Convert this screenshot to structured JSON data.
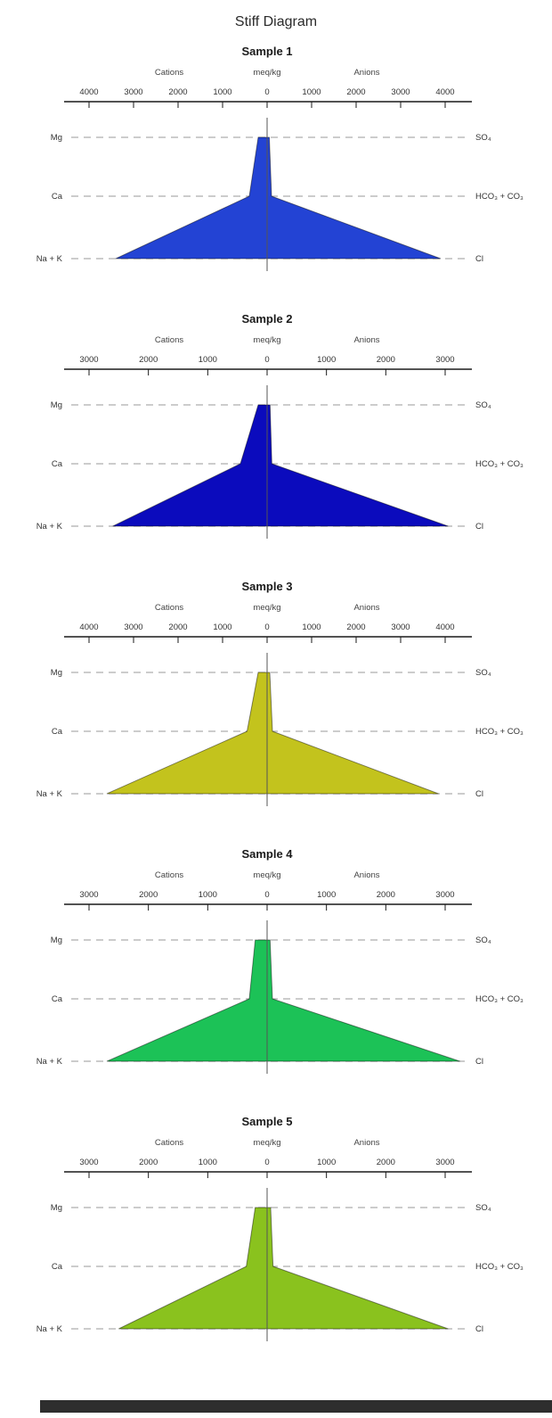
{
  "page_title": "Stiff Diagram",
  "chart_data": [
    {
      "type": "area",
      "subtype": "stiff",
      "title": "Sample 1",
      "group_labels": {
        "cations": "Cations",
        "units": "meq/kg",
        "anions": "Anions"
      },
      "axis": {
        "max": 4000,
        "tick_step": 1000,
        "tick_labels_absolute": true
      },
      "color": "#2343d4",
      "rows": [
        {
          "cation_label": "Mg",
          "anion_label": "SO₄",
          "cation_value": 200,
          "anion_value": 50
        },
        {
          "cation_label": "Ca",
          "anion_label": "HCO₃ + CO₃",
          "cation_value": 400,
          "anion_value": 100
        },
        {
          "cation_label": "Na + K",
          "anion_label": "Cl",
          "cation_value": 3400,
          "anion_value": 3900
        }
      ]
    },
    {
      "type": "area",
      "subtype": "stiff",
      "title": "Sample 2",
      "group_labels": {
        "cations": "Cations",
        "units": "meq/kg",
        "anions": "Anions"
      },
      "axis": {
        "max": 3000,
        "tick_step": 1000,
        "tick_labels_absolute": true
      },
      "color": "#0b0bbd",
      "rows": [
        {
          "cation_label": "Mg",
          "anion_label": "SO₄",
          "cation_value": 150,
          "anion_value": 50
        },
        {
          "cation_label": "Ca",
          "anion_label": "HCO₃ + CO₃",
          "cation_value": 450,
          "anion_value": 80
        },
        {
          "cation_label": "Na + K",
          "anion_label": "Cl",
          "cation_value": 2600,
          "anion_value": 3050
        }
      ]
    },
    {
      "type": "area",
      "subtype": "stiff",
      "title": "Sample 3",
      "group_labels": {
        "cations": "Cations",
        "units": "meq/kg",
        "anions": "Anions"
      },
      "axis": {
        "max": 4000,
        "tick_step": 1000,
        "tick_labels_absolute": true
      },
      "color": "#c3c31d",
      "rows": [
        {
          "cation_label": "Mg",
          "anion_label": "SO₄",
          "cation_value": 200,
          "anion_value": 60
        },
        {
          "cation_label": "Ca",
          "anion_label": "HCO₃ + CO₃",
          "cation_value": 450,
          "anion_value": 120
        },
        {
          "cation_label": "Na + K",
          "anion_label": "Cl",
          "cation_value": 3600,
          "anion_value": 3850
        }
      ]
    },
    {
      "type": "area",
      "subtype": "stiff",
      "title": "Sample 4",
      "group_labels": {
        "cations": "Cations",
        "units": "meq/kg",
        "anions": "Anions"
      },
      "axis": {
        "max": 3000,
        "tick_step": 1000,
        "tick_labels_absolute": true
      },
      "color": "#1cc257",
      "rows": [
        {
          "cation_label": "Mg",
          "anion_label": "SO₄",
          "cation_value": 200,
          "anion_value": 50
        },
        {
          "cation_label": "Ca",
          "anion_label": "HCO₃ + CO₃",
          "cation_value": 300,
          "anion_value": 90
        },
        {
          "cation_label": "Na + K",
          "anion_label": "Cl",
          "cation_value": 2700,
          "anion_value": 3250
        }
      ]
    },
    {
      "type": "area",
      "subtype": "stiff",
      "title": "Sample 5",
      "group_labels": {
        "cations": "Cations",
        "units": "meq/kg",
        "anions": "Anions"
      },
      "axis": {
        "max": 3000,
        "tick_step": 1000,
        "tick_labels_absolute": true
      },
      "color": "#8ac21e",
      "rows": [
        {
          "cation_label": "Mg",
          "anion_label": "SO₄",
          "cation_value": 200,
          "anion_value": 60
        },
        {
          "cation_label": "Ca",
          "anion_label": "HCO₃ + CO₃",
          "cation_value": 350,
          "anion_value": 100
        },
        {
          "cation_label": "Na + K",
          "anion_label": "Cl",
          "cation_value": 2500,
          "anion_value": 3050
        }
      ]
    }
  ]
}
